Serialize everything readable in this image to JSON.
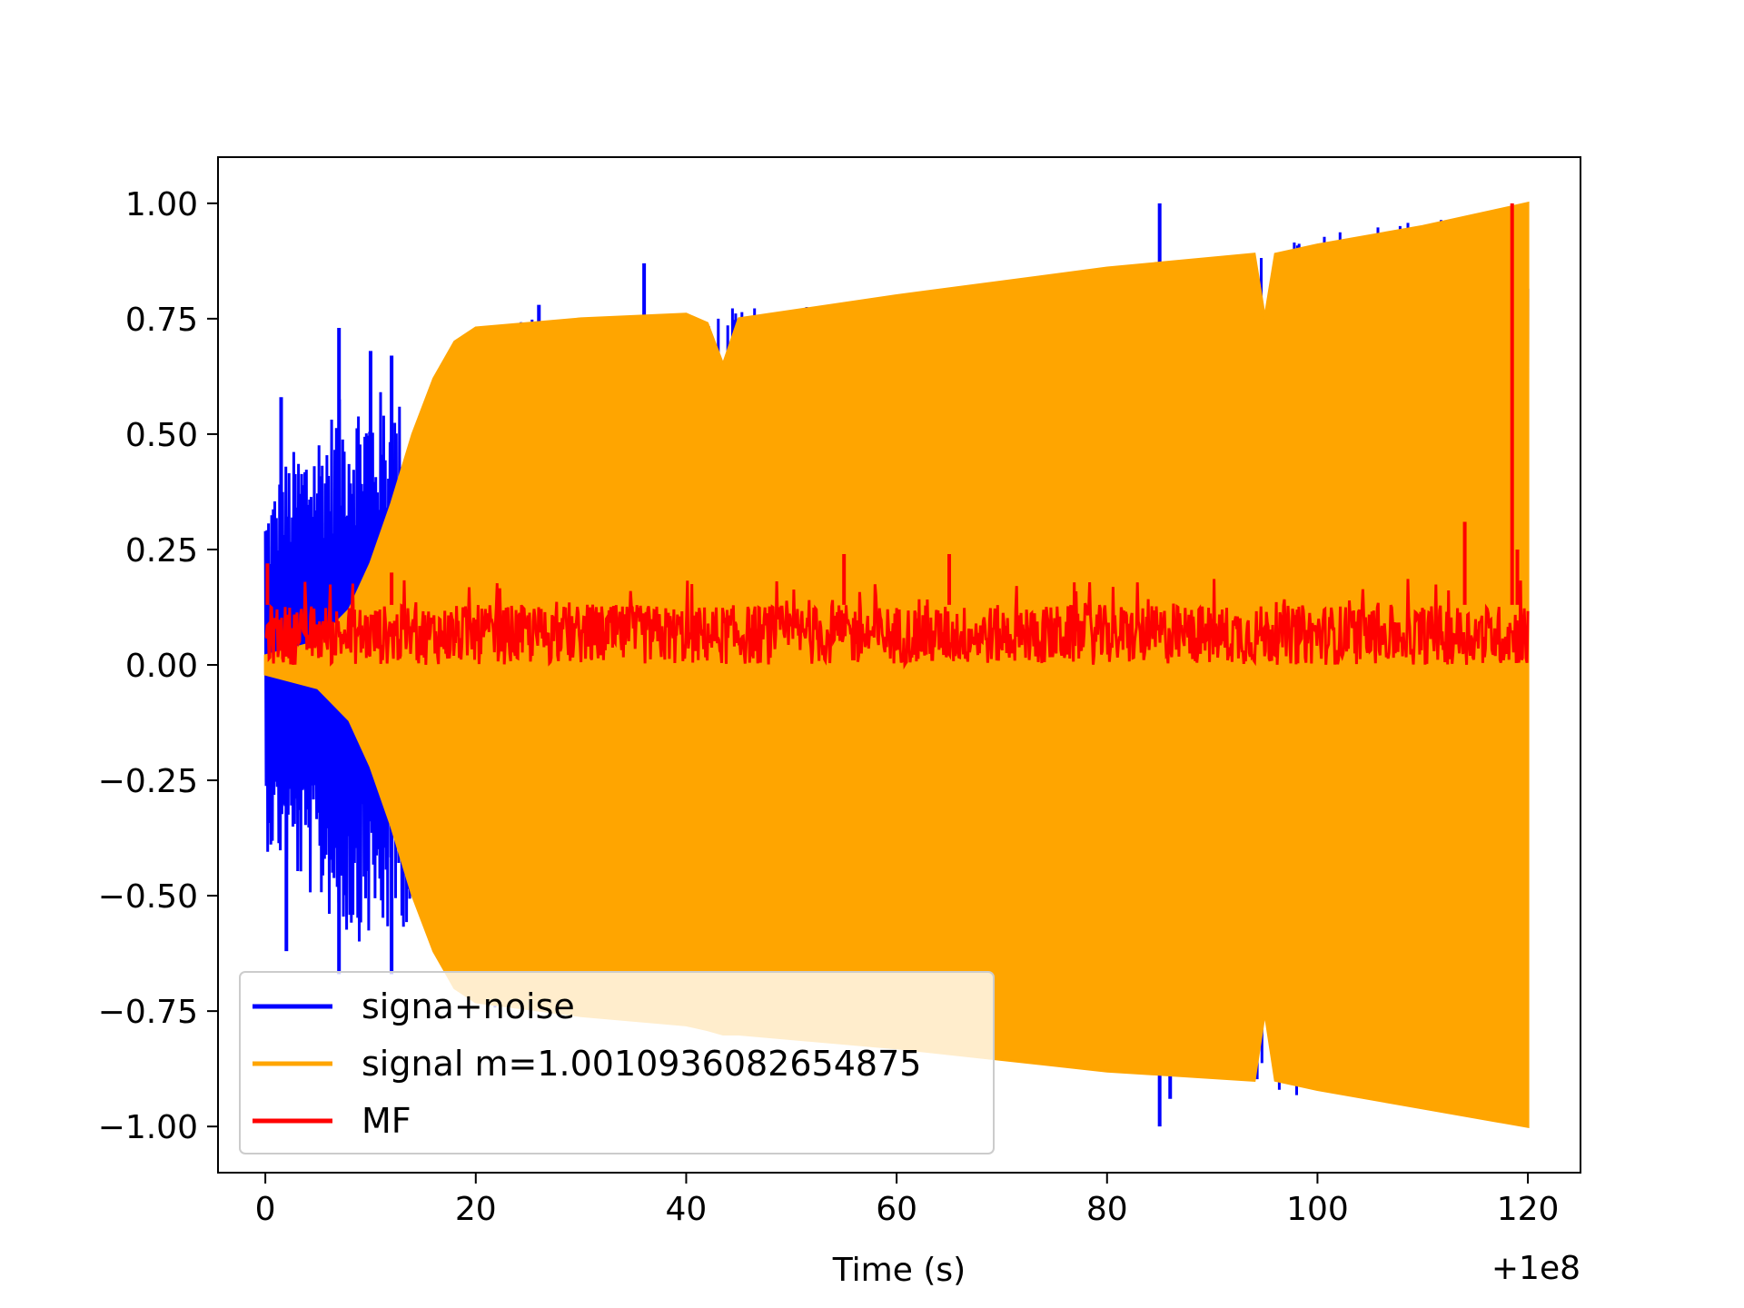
{
  "chart_data": {
    "type": "line",
    "xlabel": "Time (s)",
    "ylabel": "",
    "x_offset_label": "+1e8",
    "xlim": [
      -4.5,
      125
    ],
    "ylim": [
      -1.1,
      1.1
    ],
    "x_ticks": [
      0,
      20,
      40,
      60,
      80,
      100,
      120
    ],
    "x_tick_labels": [
      "0",
      "20",
      "40",
      "60",
      "80",
      "100",
      "120"
    ],
    "y_ticks": [
      1.0,
      0.75,
      0.5,
      0.25,
      0.0,
      -0.25,
      -0.5,
      -0.75,
      -1.0
    ],
    "y_tick_labels": [
      "1.00",
      "0.75",
      "0.50",
      "0.25",
      "0.00",
      "−0.25",
      "−0.50",
      "−0.75",
      "−1.00"
    ],
    "grid": false,
    "legend_position": "lower-left",
    "series": [
      {
        "name": "signa+noise",
        "color": "#0000ff",
        "envelope_x": [
          0,
          2,
          4,
          6,
          8,
          10,
          12,
          14,
          16,
          20,
          30,
          40,
          60,
          80,
          100,
          120
        ],
        "envelope_upper": [
          0.35,
          0.45,
          0.5,
          0.55,
          0.6,
          0.6,
          0.6,
          0.55,
          0.6,
          0.74,
          0.76,
          0.77,
          0.8,
          0.86,
          0.93,
          1.0
        ],
        "envelope_lower": [
          -0.4,
          -0.45,
          -0.5,
          -0.55,
          -0.6,
          -0.6,
          -0.6,
          -0.55,
          -0.6,
          -0.74,
          -0.77,
          -0.78,
          -0.82,
          -0.88,
          -0.94,
          -1.0
        ],
        "spikes": [
          {
            "x": 1.5,
            "y": 0.58
          },
          {
            "x": 7,
            "y": 0.73
          },
          {
            "x": 10,
            "y": 0.68
          },
          {
            "x": 12,
            "y": 0.67
          },
          {
            "x": 2,
            "y": -0.62
          },
          {
            "x": 7,
            "y": -0.67
          },
          {
            "x": 12,
            "y": -0.67
          },
          {
            "x": 26,
            "y": 0.78
          },
          {
            "x": 36,
            "y": 0.87
          },
          {
            "x": 85,
            "y": 1.0
          },
          {
            "x": 85,
            "y": -1.0
          },
          {
            "x": 86,
            "y": -0.94
          }
        ]
      },
      {
        "name": "signal m=1.0010936082654875",
        "color": "#ffa500",
        "envelope_x": [
          0,
          5,
          8,
          10,
          12,
          14,
          16,
          18,
          20,
          30,
          40,
          42,
          43.5,
          45,
          60,
          80,
          94,
          95,
          96,
          100,
          110,
          120
        ],
        "envelope_upper": [
          0.02,
          0.05,
          0.12,
          0.22,
          0.35,
          0.5,
          0.62,
          0.7,
          0.73,
          0.75,
          0.76,
          0.74,
          0.65,
          0.75,
          0.8,
          0.86,
          0.89,
          0.75,
          0.89,
          0.91,
          0.95,
          1.0
        ],
        "envelope_lower": [
          -0.02,
          -0.05,
          -0.12,
          -0.22,
          -0.35,
          -0.5,
          -0.62,
          -0.7,
          -0.73,
          -0.76,
          -0.78,
          -0.79,
          -0.8,
          -0.8,
          -0.83,
          -0.88,
          -0.9,
          -0.75,
          -0.9,
          -0.92,
          -0.96,
          -1.0
        ]
      },
      {
        "name": "MF",
        "color": "#ff0000",
        "baseline_range": [
          0.0,
          0.13
        ],
        "spikes": [
          {
            "x": 0.2,
            "y": 0.22
          },
          {
            "x": 12,
            "y": 0.2
          },
          {
            "x": 55,
            "y": 0.24
          },
          {
            "x": 65,
            "y": 0.24
          },
          {
            "x": 114,
            "y": 0.31
          },
          {
            "x": 118.5,
            "y": 1.0
          },
          {
            "x": 119,
            "y": 0.25
          }
        ]
      }
    ]
  }
}
